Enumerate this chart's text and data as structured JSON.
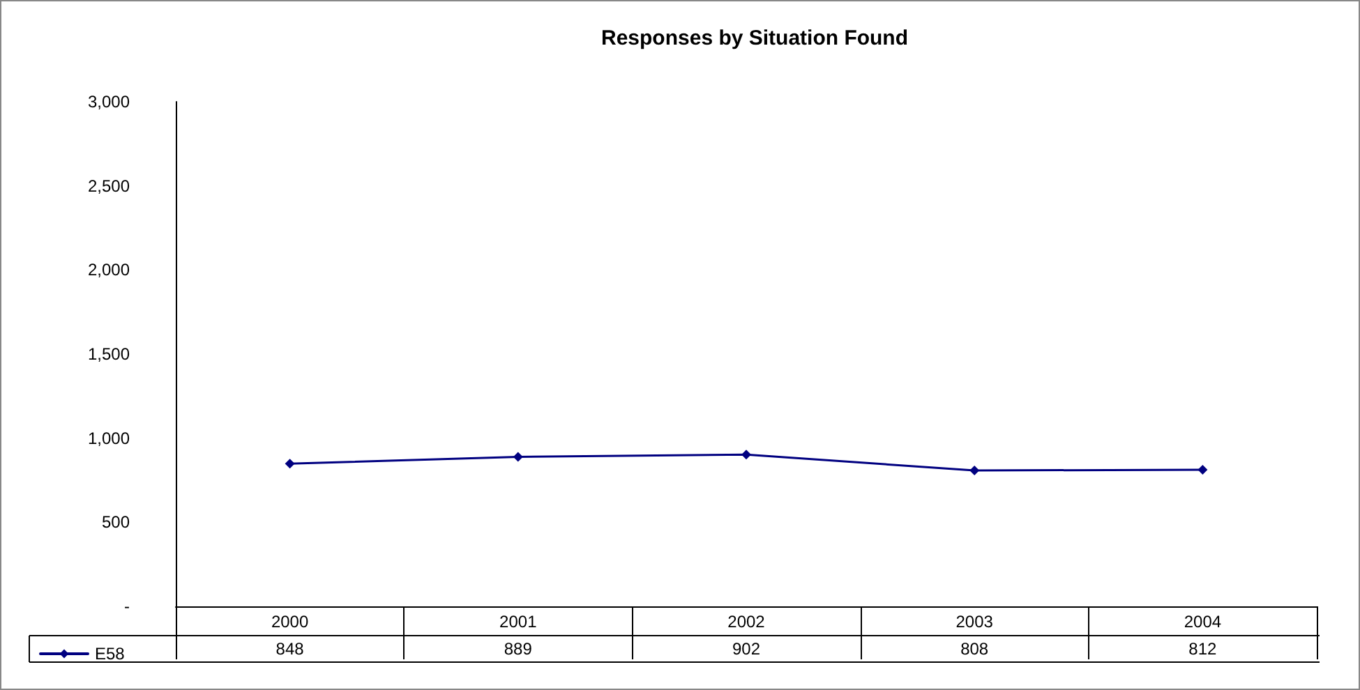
{
  "chart_data": {
    "type": "line",
    "title": "Responses by Situation Found",
    "categories": [
      "2000",
      "2001",
      "2002",
      "2003",
      "2004"
    ],
    "series": [
      {
        "name": "E58",
        "color": "#000080",
        "values": [
          848,
          889,
          902,
          808,
          812
        ]
      }
    ],
    "ylim": [
      0,
      3000
    ],
    "yticks": [
      {
        "value": 0,
        "label": "-"
      },
      500,
      {
        "value": 1000,
        "label": "1,000"
      },
      {
        "value": 1500,
        "label": "1,500"
      },
      {
        "value": 2000,
        "label": "2,000"
      },
      {
        "value": 2500,
        "label": "2,500"
      },
      {
        "value": 3000,
        "label": "3,000"
      }
    ],
    "data_labels": true,
    "legend": "bottom left",
    "marker": "diamond",
    "grid": false
  }
}
